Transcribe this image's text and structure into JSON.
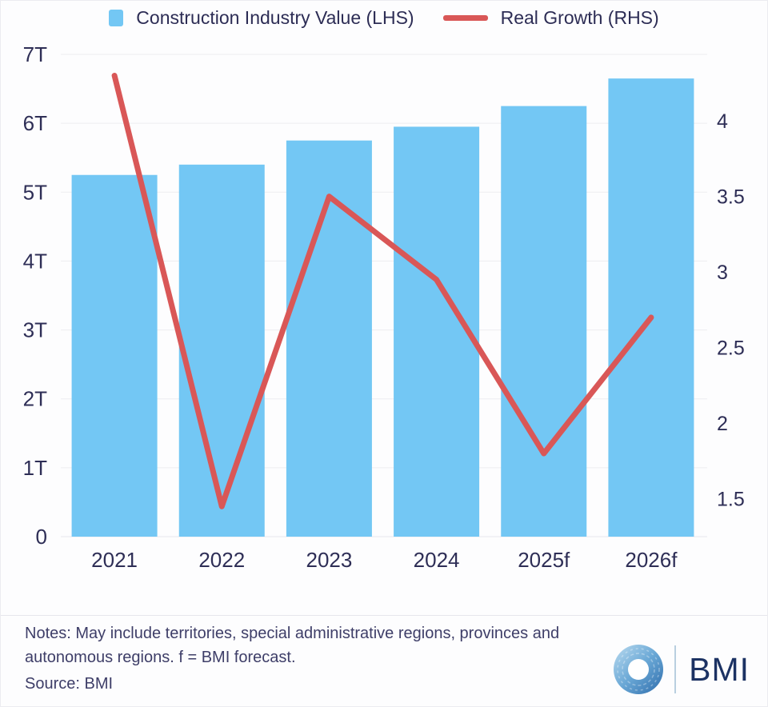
{
  "legend": {
    "bar_label": "Construction Industry Value (LHS)",
    "line_label": "Real Growth (RHS)"
  },
  "chart_data": {
    "type": "combo",
    "categories": [
      "2021",
      "2022",
      "2023",
      "2024",
      "2025f",
      "2026f"
    ],
    "series": [
      {
        "name": "Construction Industry Value (LHS)",
        "type": "bar",
        "axis": "left",
        "color": "#73C7F4",
        "values": [
          5.25,
          5.4,
          5.75,
          5.95,
          6.25,
          6.65
        ]
      },
      {
        "name": "Real Growth (RHS)",
        "type": "line",
        "axis": "right",
        "color": "#D95757",
        "values": [
          4.3,
          1.45,
          3.5,
          2.95,
          1.8,
          2.7
        ]
      }
    ],
    "left_axis": {
      "ticks": [
        "0",
        "1T",
        "2T",
        "3T",
        "4T",
        "5T",
        "6T",
        "7T"
      ],
      "min": 0,
      "max": 7,
      "unit": "T"
    },
    "right_axis": {
      "ticks": [
        1.5,
        2,
        2.5,
        3,
        3.5,
        4
      ],
      "min": 1.25,
      "max": 4.44
    },
    "grid": true,
    "legend_position": "top"
  },
  "footer": {
    "notes": "Notes: May include territories, special administrative regions, provinces and autonomous regions. f = BMI forecast.",
    "source": "Source: BMI",
    "brand": "BMI"
  },
  "colors": {
    "bar": "#73C7F4",
    "line": "#D95757",
    "text": "#2E2E56",
    "grid": "#EDEDF0",
    "brand_navy": "#1C3263"
  }
}
